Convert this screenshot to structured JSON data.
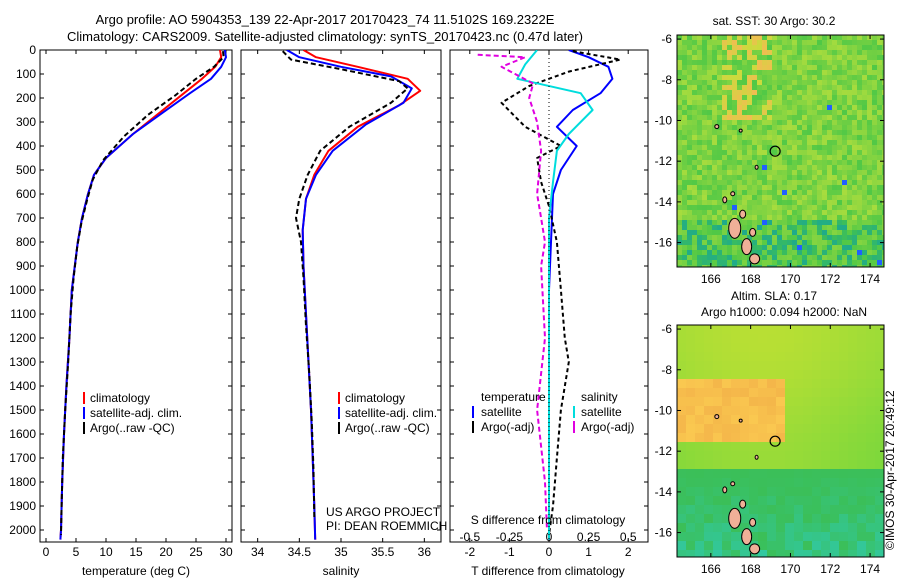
{
  "header": {
    "title_line1": "Argo profile: AO 5904353_139 22-Apr-2017 20170423_74 11.5102S 169.2322E",
    "title_line2": "Climatology: CARS2009. Satellite-adjusted climatology: synTS_20170423.nc (0.47d later)"
  },
  "chart_data": [
    {
      "id": "temperature_profile",
      "type": "line",
      "xlabel": "temperature (deg C)",
      "ylabel": "",
      "xlim": [
        -1,
        31
      ],
      "ylim": [
        2050,
        0
      ],
      "xticks": [
        0,
        5,
        10,
        15,
        20,
        25,
        30
      ],
      "yticks": [
        0,
        100,
        200,
        300,
        400,
        500,
        600,
        700,
        800,
        900,
        1000,
        1100,
        1200,
        1300,
        1400,
        1500,
        1600,
        1700,
        1800,
        1900,
        2000
      ],
      "legend": [
        "climatology",
        "satellite-adj. clim.",
        "Argo(..raw -QC)"
      ],
      "series": [
        {
          "name": "climatology",
          "color": "#ff0000",
          "dash": "",
          "points": [
            [
              29.0,
              0
            ],
            [
              29.2,
              30
            ],
            [
              28.2,
              70
            ],
            [
              26.0,
              120
            ],
            [
              23.0,
              180
            ],
            [
              19.0,
              260
            ],
            [
              14.5,
              350
            ],
            [
              10.0,
              450
            ],
            [
              8.0,
              520
            ],
            [
              7.0,
              600
            ],
            [
              6.0,
              700
            ],
            [
              5.3,
              800
            ],
            [
              4.8,
              900
            ],
            [
              4.3,
              1000
            ],
            [
              3.9,
              1200
            ],
            [
              3.4,
              1400
            ],
            [
              3.0,
              1600
            ],
            [
              2.7,
              1800
            ],
            [
              2.5,
              2000
            ],
            [
              2.4,
              2040
            ]
          ]
        },
        {
          "name": "satellite-adj. clim.",
          "color": "#0000ff",
          "dash": "",
          "points": [
            [
              29.8,
              0
            ],
            [
              30.0,
              30
            ],
            [
              29.2,
              70
            ],
            [
              27.5,
              120
            ],
            [
              24.0,
              180
            ],
            [
              19.5,
              260
            ],
            [
              14.5,
              350
            ],
            [
              10.0,
              450
            ],
            [
              8.0,
              520
            ],
            [
              7.0,
              600
            ],
            [
              6.0,
              700
            ],
            [
              5.3,
              800
            ],
            [
              4.8,
              900
            ],
            [
              4.3,
              1000
            ],
            [
              3.9,
              1200
            ],
            [
              3.4,
              1400
            ],
            [
              3.0,
              1600
            ],
            [
              2.7,
              1800
            ],
            [
              2.5,
              2000
            ],
            [
              2.4,
              2040
            ]
          ]
        },
        {
          "name": "Argo(..raw -QC)",
          "color": "#000000",
          "dash": "5,3",
          "points": [
            [
              29.5,
              5
            ],
            [
              29.6,
              30
            ],
            [
              28.0,
              70
            ],
            [
              25.0,
              120
            ],
            [
              21.5,
              190
            ],
            [
              17.0,
              270
            ],
            [
              13.0,
              360
            ],
            [
              9.5,
              460
            ],
            [
              7.8,
              540
            ],
            [
              6.9,
              620
            ],
            [
              5.9,
              720
            ],
            [
              5.2,
              820
            ],
            [
              4.6,
              950
            ],
            [
              4.1,
              1100
            ],
            [
              3.7,
              1300
            ],
            [
              3.2,
              1500
            ],
            [
              2.8,
              1700
            ],
            [
              2.6,
              1900
            ],
            [
              2.5,
              2020
            ]
          ]
        }
      ]
    },
    {
      "id": "salinity_profile",
      "type": "line",
      "xlabel": "salinity",
      "xlim": [
        33.8,
        36.2
      ],
      "ylim": [
        2050,
        0
      ],
      "xticks": [
        34,
        34.5,
        35,
        35.5,
        36
      ],
      "xticklabels": [
        "34",
        "34.5",
        "35",
        "35.5",
        "36"
      ],
      "legend": [
        "climatology",
        "satellite-adj. clim.",
        "Argo(..raw -QC)"
      ],
      "series": [
        {
          "name": "climatology",
          "color": "#ff0000",
          "dash": "",
          "points": [
            [
              34.55,
              0
            ],
            [
              34.7,
              30
            ],
            [
              35.2,
              70
            ],
            [
              35.8,
              120
            ],
            [
              35.95,
              170
            ],
            [
              35.7,
              230
            ],
            [
              35.2,
              320
            ],
            [
              34.85,
              420
            ],
            [
              34.68,
              520
            ],
            [
              34.58,
              620
            ],
            [
              34.54,
              750
            ],
            [
              34.55,
              900
            ],
            [
              34.58,
              1100
            ],
            [
              34.61,
              1300
            ],
            [
              34.64,
              1500
            ],
            [
              34.66,
              1700
            ],
            [
              34.68,
              1900
            ],
            [
              34.69,
              2040
            ]
          ]
        },
        {
          "name": "satellite-adj. clim.",
          "color": "#0000ff",
          "dash": "",
          "points": [
            [
              34.35,
              0
            ],
            [
              34.5,
              30
            ],
            [
              35.0,
              70
            ],
            [
              35.6,
              110
            ],
            [
              35.85,
              160
            ],
            [
              35.75,
              220
            ],
            [
              35.3,
              310
            ],
            [
              34.9,
              420
            ],
            [
              34.7,
              520
            ],
            [
              34.58,
              620
            ],
            [
              34.54,
              750
            ],
            [
              34.55,
              900
            ],
            [
              34.58,
              1100
            ],
            [
              34.61,
              1300
            ],
            [
              34.64,
              1500
            ],
            [
              34.66,
              1700
            ],
            [
              34.68,
              1900
            ],
            [
              34.69,
              2040
            ]
          ]
        },
        {
          "name": "Argo(..raw -QC)",
          "color": "#000000",
          "dash": "5,3",
          "points": [
            [
              34.3,
              5
            ],
            [
              34.4,
              40
            ],
            [
              35.0,
              80
            ],
            [
              35.7,
              130
            ],
            [
              35.8,
              160
            ],
            [
              35.6,
              220
            ],
            [
              35.1,
              320
            ],
            [
              34.75,
              420
            ],
            [
              34.6,
              520
            ],
            [
              34.5,
              620
            ],
            [
              34.46,
              700
            ],
            [
              34.52,
              800
            ],
            [
              34.55,
              950
            ],
            [
              34.58,
              1150
            ],
            [
              34.62,
              1350
            ],
            [
              34.65,
              1550
            ],
            [
              34.67,
              1750
            ],
            [
              34.68,
              1950
            ]
          ]
        }
      ]
    },
    {
      "id": "difference_profile",
      "type": "line",
      "xlabel": "T difference from climatology",
      "xlabel_top": "S difference from climatology",
      "xlim": [
        -2.5,
        2.5
      ],
      "ylim": [
        2050,
        0
      ],
      "xticks": [
        -2,
        -1,
        0,
        1,
        2
      ],
      "top_ticks": [
        -0.5,
        -0.25,
        0,
        0.25,
        0.5
      ],
      "top_ticklabels": [
        "-0.5",
        "-0.25",
        "0",
        "0.25",
        "0.5"
      ],
      "legend_groups": [
        {
          "title": "temperature",
          "items": [
            "satellite",
            "Argo(-adj)"
          ]
        },
        {
          "title": "salinity",
          "items": [
            "satellite",
            "Argo(-adj)"
          ]
        }
      ],
      "series": [
        {
          "name": "temperature satellite",
          "color": "#0000ff",
          "dash": "",
          "points": [
            [
              0.5,
              0
            ],
            [
              1.0,
              30
            ],
            [
              1.5,
              70
            ],
            [
              1.6,
              120
            ],
            [
              1.3,
              180
            ],
            [
              0.6,
              250
            ],
            [
              0.2,
              320
            ],
            [
              0.7,
              400
            ],
            [
              0.3,
              500
            ],
            [
              0.1,
              600
            ],
            [
              0.05,
              800
            ],
            [
              0.0,
              1000
            ],
            [
              0.0,
              1500
            ],
            [
              0.0,
              2040
            ]
          ]
        },
        {
          "name": "temperature Argo(-adj)",
          "color": "#000000",
          "dash": "4,3",
          "points": [
            [
              0.6,
              5
            ],
            [
              1.8,
              40
            ],
            [
              0.5,
              90
            ],
            [
              -0.5,
              150
            ],
            [
              -1.2,
              220
            ],
            [
              -0.6,
              320
            ],
            [
              0.3,
              400
            ],
            [
              -0.3,
              450
            ],
            [
              -0.2,
              550
            ],
            [
              0.0,
              650
            ],
            [
              0.2,
              800
            ],
            [
              0.3,
              1000
            ],
            [
              0.4,
              1200
            ],
            [
              0.5,
              1300
            ],
            [
              0.3,
              1500
            ],
            [
              0.2,
              1700
            ],
            [
              0.1,
              1900
            ],
            [
              0.0,
              2020
            ]
          ]
        },
        {
          "name": "salinity satellite",
          "color": "#00dddd",
          "dash": "",
          "points": [
            [
              -0.3,
              0
            ],
            [
              -0.6,
              60
            ],
            [
              -0.8,
              120
            ],
            [
              0.8,
              180
            ],
            [
              1.1,
              250
            ],
            [
              0.5,
              350
            ],
            [
              0.2,
              420
            ],
            [
              0.1,
              550
            ],
            [
              0.0,
              700
            ],
            [
              0.0,
              1000
            ],
            [
              0.0,
              1500
            ],
            [
              0.0,
              2040
            ]
          ]
        },
        {
          "name": "salinity Argo(-adj)",
          "color": "#e000e0",
          "dash": "5,3",
          "points": [
            [
              -1.8,
              20
            ],
            [
              -0.6,
              30
            ],
            [
              -1.2,
              70
            ],
            [
              -0.4,
              140
            ],
            [
              -0.5,
              200
            ],
            [
              -0.3,
              300
            ],
            [
              -0.2,
              420
            ],
            [
              -0.3,
              600
            ],
            [
              -0.2,
              700
            ],
            [
              -0.1,
              800
            ],
            [
              -0.2,
              900
            ],
            [
              -0.1,
              1200
            ],
            [
              -0.3,
              1500
            ],
            [
              -0.1,
              1800
            ],
            [
              -0.05,
              2000
            ]
          ]
        }
      ]
    },
    {
      "id": "sst_map",
      "type": "heatmap",
      "title": "sat. SST: 30 Argo: 30.2",
      "xticks": [
        166,
        168,
        170,
        172,
        174
      ],
      "yticks": [
        -6,
        -8,
        -10,
        -12,
        -14,
        -16
      ],
      "xlim": [
        164.3,
        174.7
      ],
      "ylim": [
        -17.2,
        -5.8
      ],
      "argo_position": [
        169.23,
        -11.51
      ]
    },
    {
      "id": "sla_map",
      "type": "heatmap",
      "title_line1": "Altim. SLA: 0.17",
      "title_line2": "Argo h1000: 0.094 h2000: NaN",
      "xticks": [
        166,
        168,
        170,
        172,
        174
      ],
      "yticks": [
        -6,
        -8,
        -10,
        -12,
        -14,
        -16
      ],
      "xlim": [
        164.3,
        174.7
      ],
      "ylim": [
        -17.2,
        -5.8
      ],
      "argo_position": [
        169.23,
        -11.51
      ]
    }
  ],
  "legends": {
    "profile_items": [
      "climatology",
      "satellite-adj. clim.",
      "Argo(..raw -QC)"
    ],
    "diff_temp_title": "temperature",
    "diff_sal_title": "salinity",
    "diff_items": [
      "satellite",
      "Argo(-adj)"
    ]
  },
  "credits": {
    "project": "US ARGO PROJECT",
    "pi": "PI: DEAN ROEMMICH",
    "stamp": "©IMOS 30-Apr-2017 20:49:12"
  }
}
